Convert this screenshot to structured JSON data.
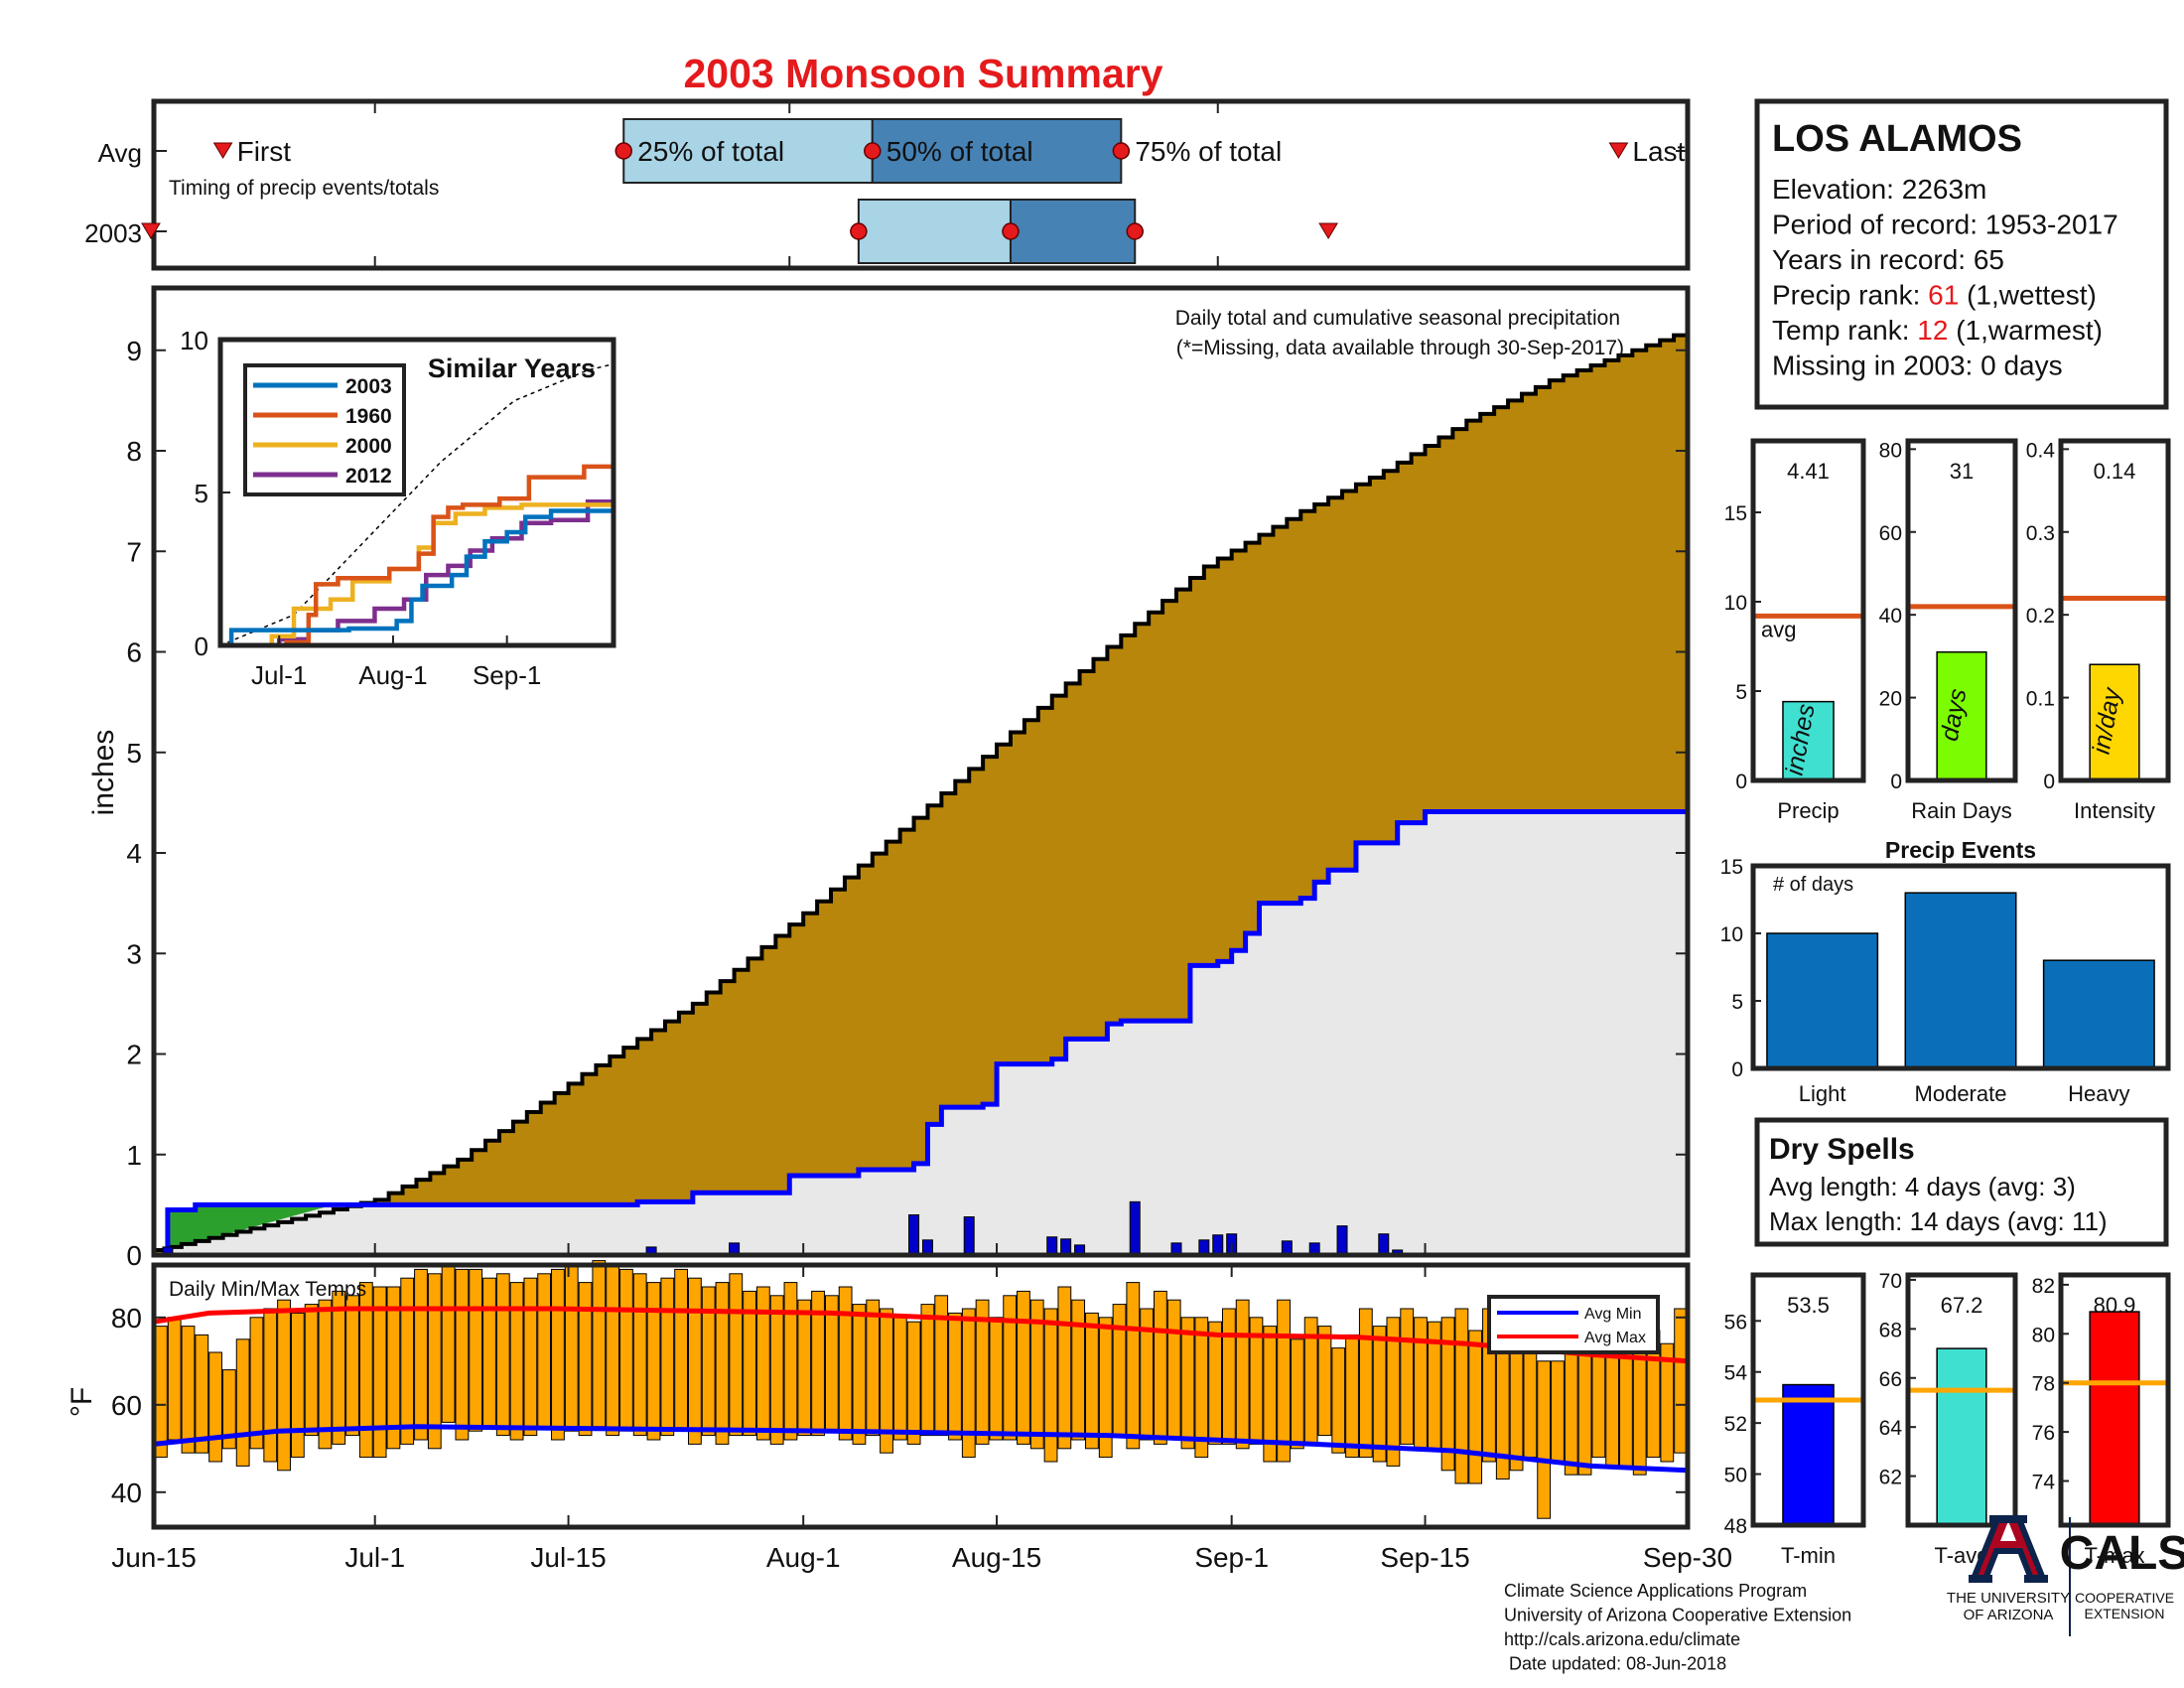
{
  "title": "2003 Monsoon Summary",
  "timing": {
    "row_labels": [
      "Avg",
      "2003"
    ],
    "caption": "Timing of precip events/totals",
    "labels": {
      "first": "First",
      "p25": "25% of total",
      "p50": "50% of total",
      "p75": "75% of total",
      "last": "Last"
    },
    "avg": {
      "first": "Jun-20",
      "p25": "Jul-19",
      "p50": "Aug-06",
      "p75": "Aug-24",
      "last": "Sep-29"
    },
    "year": {
      "first": "Jun-15",
      "p25": "Aug-05",
      "p50": "Aug-16",
      "p75": "Aug-25",
      "last": "Sep-08"
    },
    "colors": {
      "light": "#a8d4e6",
      "dark": "#4682b4",
      "marker": "#e41a1c"
    }
  },
  "station": {
    "name": "LOS ALAMOS",
    "lines": [
      {
        "prefix": "Elevation: 2263m"
      },
      {
        "prefix": "Period of record: 1953-2017"
      },
      {
        "prefix": "Years in record: 65"
      },
      {
        "prefix": "Precip rank: ",
        "value": "61",
        "suffix": " (1,wettest)"
      },
      {
        "prefix": "Temp rank: ",
        "value": "12",
        "suffix": " (1,warmest)"
      },
      {
        "prefix": "Missing in 2003: 0 days"
      }
    ],
    "highlight_color": "#e41a1c"
  },
  "summary_bars": [
    {
      "label": "Precip",
      "unit": "inches",
      "value_text": "4.41",
      "value": 4.41,
      "avg": 9.2,
      "avg_label": "avg",
      "ylim": [
        0,
        19
      ],
      "ticks": [
        0,
        5,
        10,
        15
      ],
      "color": "#40e0d0"
    },
    {
      "label": "Rain Days",
      "unit": "days",
      "value_text": "31",
      "value": 31,
      "avg": 42,
      "ylim": [
        0,
        82
      ],
      "ticks": [
        0,
        20,
        40,
        60,
        80
      ],
      "color": "#7cfc00"
    },
    {
      "label": "Intensity",
      "unit": "in/day",
      "value_text": "0.14",
      "value": 0.14,
      "avg": 0.22,
      "ylim": [
        0,
        0.41
      ],
      "ticks": [
        0,
        0.1,
        0.2,
        0.3,
        0.4
      ],
      "color": "#ffd700"
    }
  ],
  "precip_events": {
    "title": "Precip Events",
    "ylabel": "# of days",
    "categories": [
      "Light",
      "Moderate",
      "Heavy"
    ],
    "values": [
      10,
      13,
      8
    ],
    "ylim": [
      0,
      15
    ],
    "ticks": [
      0,
      5,
      10,
      15
    ],
    "color": "#0a6fb8"
  },
  "dry_spells": {
    "title": "Dry Spells",
    "lines": [
      "Avg length: 4 days (avg: 3)",
      "Max length: 14 days (avg: 11)"
    ],
    "color": "#8b4513"
  },
  "temp_summary": [
    {
      "label": "T-min",
      "value_text": "53.5",
      "value": 53.5,
      "avg": 52.9,
      "ylim": [
        48,
        57.8
      ],
      "ticks": [
        48,
        50,
        52,
        54,
        56
      ],
      "color": "#0000ff"
    },
    {
      "label": "T-avg",
      "value_text": "67.2",
      "value": 67.2,
      "avg": 65.5,
      "ylim": [
        60,
        70.2
      ],
      "ticks": [
        62,
        64,
        66,
        68,
        70
      ],
      "color": "#40e0d0"
    },
    {
      "label": "T-max",
      "value_text": "80.9",
      "value": 80.9,
      "avg": 78.0,
      "ylim": [
        72.2,
        82.4
      ],
      "ticks": [
        74,
        76,
        78,
        80,
        82
      ],
      "color": "#ff0000"
    }
  ],
  "chart_data": [
    {
      "type": "area",
      "title": "Daily total and cumulative seasonal precipitation",
      "note": "(*=Missing, data available through 30-Sep-2017)",
      "ylabel": "inches",
      "x_labels": [
        "Jun-15",
        "Jul-1",
        "Jul-15",
        "Aug-1",
        "Aug-15",
        "Sep-1",
        "Sep-15",
        "Sep-30"
      ],
      "ylim": [
        0,
        9.6
      ],
      "yticks": [
        0,
        1,
        2,
        3,
        4,
        5,
        6,
        7,
        8,
        9
      ],
      "avg_cumulative": [
        [
          1,
          0.05
        ],
        [
          6,
          0.2
        ],
        [
          17,
          0.55
        ],
        [
          23,
          0.95
        ],
        [
          32,
          1.8
        ],
        [
          40,
          2.5
        ],
        [
          48,
          3.4
        ],
        [
          56,
          4.35
        ],
        [
          63,
          5.2
        ],
        [
          70,
          6.05
        ],
        [
          77,
          6.85
        ],
        [
          84,
          7.4
        ],
        [
          90,
          7.8
        ],
        [
          96,
          8.3
        ],
        [
          102,
          8.7
        ],
        [
          109,
          9.05
        ],
        [
          112,
          9.2
        ]
      ],
      "cum_2003": [
        [
          1,
          0
        ],
        [
          2,
          0.45
        ],
        [
          4,
          0.5
        ],
        [
          36,
          0.53
        ],
        [
          40,
          0.62
        ],
        [
          47,
          0.79
        ],
        [
          52,
          0.85
        ],
        [
          56,
          0.91
        ],
        [
          57,
          1.3
        ],
        [
          58,
          1.47
        ],
        [
          61,
          1.5
        ],
        [
          62,
          1.9
        ],
        [
          66,
          1.95
        ],
        [
          67,
          2.15
        ],
        [
          70,
          2.3
        ],
        [
          71,
          2.33
        ],
        [
          76,
          2.88
        ],
        [
          78,
          2.92
        ],
        [
          79,
          3.03
        ],
        [
          80,
          3.2
        ],
        [
          81,
          3.5
        ],
        [
          84,
          3.55
        ],
        [
          85,
          3.71
        ],
        [
          86,
          3.83
        ],
        [
          88,
          4.1
        ],
        [
          91,
          4.3
        ],
        [
          93,
          4.41
        ],
        [
          112,
          4.41
        ]
      ],
      "daily_precip": [
        [
          2,
          0.08
        ],
        [
          4,
          0.02
        ],
        [
          37,
          0.08
        ],
        [
          43,
          0.12
        ],
        [
          56,
          0.4
        ],
        [
          57,
          0.15
        ],
        [
          60,
          0.38
        ],
        [
          66,
          0.18
        ],
        [
          67,
          0.16
        ],
        [
          68,
          0.1
        ],
        [
          72,
          0.53
        ],
        [
          75,
          0.12
        ],
        [
          77,
          0.15
        ],
        [
          78,
          0.2
        ],
        [
          79,
          0.21
        ],
        [
          83,
          0.14
        ],
        [
          85,
          0.12
        ],
        [
          87,
          0.29
        ],
        [
          90,
          0.21
        ],
        [
          91,
          0.05
        ]
      ],
      "colors": {
        "avg_fill": "#b8860b",
        "year_fill": "#e8e8e8",
        "line": "#0000ff",
        "surplus": "#2ca02c",
        "bars": "#0000cc"
      }
    },
    {
      "type": "line",
      "title": "Similar Years",
      "xlabels": [
        "Jul-1",
        "Aug-1",
        "Sep-1"
      ],
      "ylim": [
        0,
        10
      ],
      "yticks": [
        0,
        5,
        10
      ],
      "series": [
        {
          "name": "2003",
          "color": "#0072bd",
          "values": [
            [
              0,
              0
            ],
            [
              3,
              0.5
            ],
            [
              35,
              0.55
            ],
            [
              48,
              0.8
            ],
            [
              52,
              1.5
            ],
            [
              55,
              1.95
            ],
            [
              63,
              2.3
            ],
            [
              67,
              2.9
            ],
            [
              72,
              3.4
            ],
            [
              78,
              3.7
            ],
            [
              83,
              4.2
            ],
            [
              90,
              4.4
            ],
            [
              107,
              4.41
            ]
          ]
        },
        {
          "name": "1960",
          "color": "#d95319",
          "values": [
            [
              0,
              0
            ],
            [
              18,
              0.1
            ],
            [
              24,
              1.0
            ],
            [
              26,
              2.0
            ],
            [
              32,
              2.2
            ],
            [
              46,
              2.5
            ],
            [
              54,
              3.0
            ],
            [
              58,
              4.2
            ],
            [
              62,
              4.5
            ],
            [
              66,
              4.6
            ],
            [
              76,
              4.8
            ],
            [
              84,
              5.5
            ],
            [
              97,
              5.5
            ],
            [
              99,
              5.85
            ],
            [
              107,
              5.95
            ]
          ]
        },
        {
          "name": "2000",
          "color": "#edb120",
          "values": [
            [
              0,
              0
            ],
            [
              14,
              0.3
            ],
            [
              20,
              1.2
            ],
            [
              30,
              1.5
            ],
            [
              36,
              2.1
            ],
            [
              46,
              2.5
            ],
            [
              54,
              3.2
            ],
            [
              58,
              4.0
            ],
            [
              64,
              4.3
            ],
            [
              72,
              4.5
            ],
            [
              82,
              4.6
            ],
            [
              92,
              4.6
            ],
            [
              107,
              4.55
            ]
          ]
        },
        {
          "name": "2012",
          "color": "#7e2f8e",
          "values": [
            [
              0,
              0
            ],
            [
              16,
              0.2
            ],
            [
              24,
              0.5
            ],
            [
              32,
              0.8
            ],
            [
              42,
              1.2
            ],
            [
              50,
              1.5
            ],
            [
              56,
              2.3
            ],
            [
              62,
              2.6
            ],
            [
              68,
              3.1
            ],
            [
              74,
              3.5
            ],
            [
              82,
              4.0
            ],
            [
              90,
              4.1
            ],
            [
              100,
              4.7
            ],
            [
              107,
              4.85
            ]
          ]
        }
      ],
      "avg_values": [
        [
          0,
          0
        ],
        [
          20,
          1.0
        ],
        [
          40,
          3.5
        ],
        [
          60,
          6.0
        ],
        [
          80,
          8.0
        ],
        [
          100,
          9.0
        ],
        [
          107,
          9.2
        ]
      ]
    },
    {
      "type": "bar",
      "title": "Daily Min/Max Temps",
      "ylabel": "°F",
      "ylim": [
        32,
        92
      ],
      "yticks": [
        40,
        60,
        80
      ],
      "legend": [
        "Avg Min",
        "Avg Max"
      ],
      "legend_loc": "top-right",
      "daily_max": [
        78,
        80,
        78,
        76,
        72,
        68,
        75,
        80,
        82,
        84,
        81,
        83,
        84,
        86,
        85,
        88,
        87,
        87,
        89,
        91,
        90,
        92,
        91,
        91,
        89,
        90,
        88,
        89,
        90,
        91,
        92,
        88,
        93,
        92,
        91,
        90,
        88,
        89,
        91,
        89,
        87,
        88,
        90,
        86,
        87,
        85,
        88,
        84,
        86,
        85,
        87,
        83,
        84,
        82,
        80,
        79,
        83,
        85,
        81,
        82,
        84,
        80,
        85,
        86,
        84,
        82,
        87,
        84,
        81,
        80,
        83,
        88,
        82,
        86,
        84,
        80,
        80,
        79,
        82,
        84,
        80,
        78,
        84,
        75,
        80,
        78,
        73,
        76,
        82,
        78,
        80,
        82,
        80,
        79,
        80,
        82,
        77,
        82,
        79,
        74,
        72,
        70,
        70,
        77,
        76,
        80,
        78,
        81,
        76,
        77,
        74,
        82
      ],
      "daily_min": [
        48,
        52,
        49,
        49,
        47,
        50,
        46,
        50,
        47,
        45,
        48,
        53,
        50,
        51,
        53,
        48,
        48,
        50,
        51,
        52,
        50,
        56,
        52,
        54,
        55,
        53,
        52,
        53,
        55,
        52,
        54,
        53,
        55,
        53,
        54,
        53,
        52,
        53,
        54,
        51,
        53,
        51,
        53,
        53,
        52,
        51,
        52,
        53,
        53,
        54,
        52,
        51,
        53,
        49,
        52,
        51,
        53,
        53,
        52,
        48,
        51,
        52,
        52,
        51,
        50,
        47,
        50,
        52,
        50,
        48,
        53,
        50,
        52,
        51,
        52,
        50,
        48,
        51,
        51,
        50,
        51,
        47,
        47,
        50,
        51,
        53,
        49,
        48,
        48,
        47,
        46,
        51,
        50,
        50,
        45,
        42,
        42,
        47,
        43,
        45,
        48,
        34,
        47,
        44,
        44,
        48,
        46,
        46,
        44,
        48,
        47,
        49
      ],
      "avg_max": [
        [
          1,
          79
        ],
        [
          5,
          81
        ],
        [
          15,
          82
        ],
        [
          30,
          82
        ],
        [
          50,
          81
        ],
        [
          65,
          79
        ],
        [
          78,
          76
        ],
        [
          88,
          75.5
        ],
        [
          96,
          74
        ],
        [
          105,
          71.5
        ],
        [
          112,
          70
        ]
      ],
      "avg_min": [
        [
          1,
          51
        ],
        [
          10,
          54
        ],
        [
          20,
          55
        ],
        [
          50,
          54
        ],
        [
          70,
          53
        ],
        [
          85,
          51
        ],
        [
          95,
          49.5
        ],
        [
          105,
          46
        ],
        [
          112,
          45
        ]
      ],
      "colors": {
        "bar": "#ffa500",
        "avg_min": "#0000ff",
        "avg_max": "#ff0000"
      }
    }
  ],
  "footer": {
    "lines": [
      "Climate Science Applications Program",
      "University of Arizona Cooperative Extension",
      "http://cals.arizona.edu/climate",
      " Date updated: 08-Jun-2018"
    ]
  },
  "logos": {
    "ua_text": "THE UNIVERSITY\nOF ARIZONA",
    "cals_text": "CALS",
    "coop_text": "COOPERATIVE\nEXTENSION",
    "navy": "#0c234b",
    "red": "#ab0520"
  }
}
